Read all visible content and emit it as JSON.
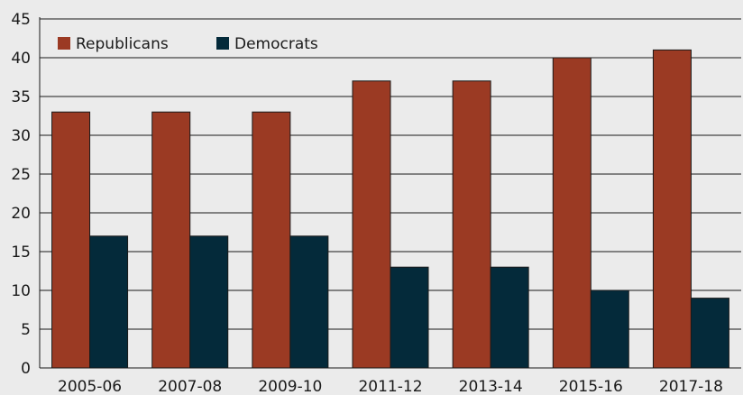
{
  "chart_data": {
    "type": "bar",
    "categories": [
      "2005-06",
      "2007-08",
      "2009-10",
      "2011-12",
      "2013-14",
      "2015-16",
      "2017-18"
    ],
    "series": [
      {
        "name": "Republicans",
        "color": "#9b3a23",
        "values": [
          33,
          33,
          33,
          37,
          37,
          40,
          41
        ]
      },
      {
        "name": "Democrats",
        "color": "#042a3a",
        "values": [
          17,
          17,
          17,
          13,
          13,
          10,
          9
        ]
      }
    ],
    "ylim": [
      0,
      45
    ],
    "yticks": [
      "0",
      "5",
      "10",
      "15",
      "20",
      "25",
      "30",
      "35",
      "40",
      "45"
    ],
    "grid": true,
    "legend_position": "top-left",
    "title": "",
    "xlabel": "",
    "ylabel": ""
  }
}
